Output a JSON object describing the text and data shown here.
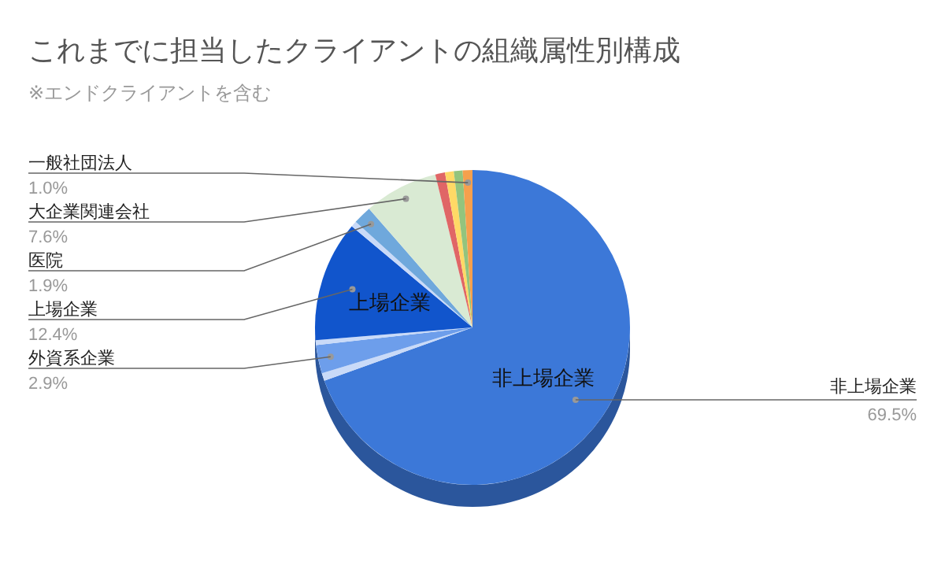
{
  "chart_data": {
    "type": "pie",
    "title": "これまでに担当したクライアントの組織属性別構成",
    "subtitle": "※エンドクライアントを含む",
    "categories": [
      "非上場企業",
      null,
      "外資系企業",
      null,
      "上場企業",
      null,
      "医院",
      "大企業関連会社",
      null,
      null,
      null,
      "一般社団法人"
    ],
    "values": [
      69.5,
      0.8,
      2.9,
      0.5,
      12.4,
      0.6,
      1.9,
      7.6,
      1.0,
      0.9,
      0.9,
      1.0
    ],
    "value_labels": [
      "69.5%",
      null,
      "2.9%",
      null,
      "12.4%",
      null,
      "1.9%",
      "7.6%",
      null,
      null,
      null,
      "1.0%"
    ],
    "colors": [
      "#3c78d8",
      "#c9daf8",
      "#6d9eeb",
      "#c9daf8",
      "#1155cc",
      "#c9daf8",
      "#6fa8dc",
      "#d9ead3",
      "#e06666",
      "#ffd966",
      "#93c47d",
      "#f6a04d"
    ],
    "legend": false
  }
}
